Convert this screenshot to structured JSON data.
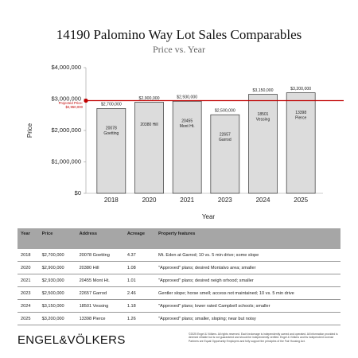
{
  "chart_data": {
    "type": "bar",
    "title": "14190 Palomino Way Lot Sales Comparables",
    "subtitle": "Price vs. Year",
    "x_label": "Year",
    "y_label": "Price",
    "categories": [
      "2018",
      "2020",
      "2021",
      "2023",
      "2024",
      "2025"
    ],
    "values": [
      2700000,
      2900000,
      2930000,
      2500000,
      3150000,
      3200000
    ],
    "value_labels": [
      "$2,700,000",
      "$2,900,000",
      "$2,930,000",
      "$2,500,000",
      "$3,150,000",
      "$3,200,000"
    ],
    "bar_labels": [
      [
        "20078",
        "Goetting"
      ],
      [
        "20380 Hill"
      ],
      [
        "20455",
        "Mont Ht."
      ],
      [
        "22657",
        "Garrod"
      ],
      [
        "18501",
        "Vessing"
      ],
      [
        "13398",
        "Pierce"
      ]
    ],
    "color": "#dcdcdc",
    "ylim": [
      0,
      4000000
    ],
    "yticks": [
      {
        "value": 0,
        "label": "$0"
      },
      {
        "value": 1000000,
        "label": "$1,000,000"
      },
      {
        "value": 2000000,
        "label": "$2,000,000"
      },
      {
        "value": 3000000,
        "label": "$3,000,000"
      },
      {
        "value": 4000000,
        "label": "$4,000,000"
      }
    ],
    "grid": false,
    "reference_line": {
      "value": 2950000,
      "label": [
        "Projected Price:",
        "$2,950,000"
      ],
      "color": "#c00000"
    }
  },
  "table": {
    "header": [
      "Year",
      "Price",
      "Address",
      "Acreage",
      "Property features"
    ],
    "rows": [
      [
        "2018",
        "$2,700,000",
        "20078 Goetting",
        "4.37",
        "Mt. Eden at Garrod; 10 vs. 5 min drive; some slope"
      ],
      [
        "2020",
        "$2,900,000",
        "20380 Hill",
        "1.08",
        "\"Approved\" plans; desired Montalvo area; smaller"
      ],
      [
        "2021",
        "$2,930,000",
        "20455 Mont Ht.",
        "1.01",
        "\"Approved\" plans; desired neigh orhood; smaller"
      ],
      [
        "2023",
        "$2,500,000",
        "22657 Garrod",
        "2.46",
        "Gentler slope; horse smell; access not maintained; 10 vs. 5 min drive"
      ],
      [
        "2024",
        "$3,150,000",
        "18501 Vessing",
        "1.18",
        "\"Approved\" plans; lower rated Campbell schools; smaller"
      ],
      [
        "2025",
        "$3,200,000",
        "13398 Pierce",
        "1.26",
        "\"Approved\" plans; smaller, sloping; near but noisy"
      ]
    ]
  },
  "footer": {
    "logo": "ENGEL&VÖLKERS",
    "disclaimer": "©2025 Engel & Völkers. All rights reserved. Each brokerage is independently owned and operated. All information provided is deemed reliable but is not guaranteed and should be independently verified. Engel & Völkers and its independent License Partners are Equal Opportunity Employers and fully support the principles of the Fair Housing Act."
  }
}
